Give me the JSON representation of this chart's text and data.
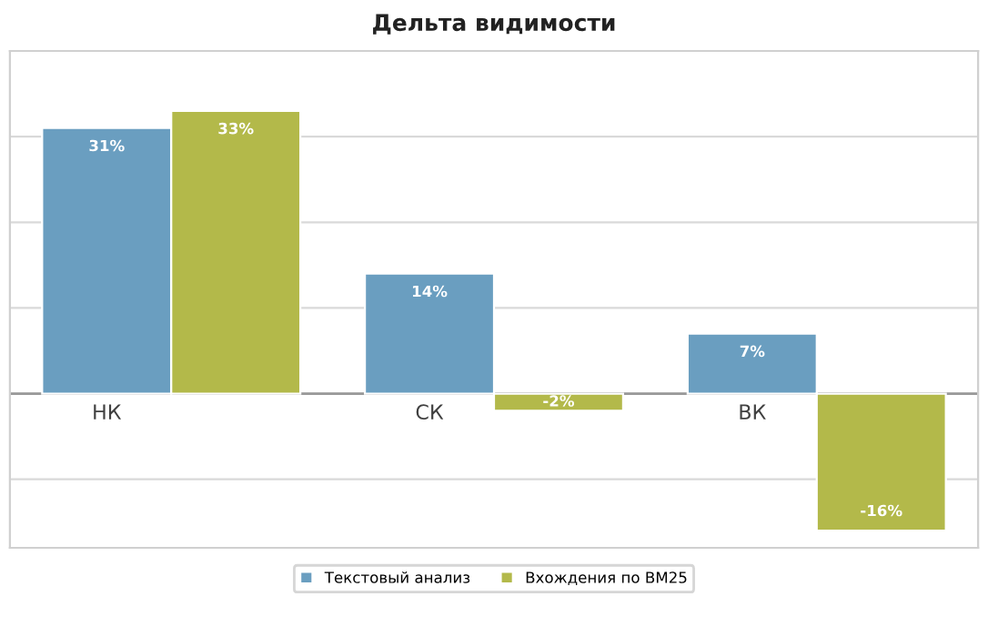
{
  "chart_data": {
    "type": "bar",
    "title": "Дельта видимости",
    "categories": [
      "НК",
      "СК",
      "ВК"
    ],
    "series": [
      {
        "name": "Текстовый анализ",
        "color": "#6a9ec0",
        "values": [
          31,
          14,
          7
        ],
        "value_labels": [
          "31%",
          "14%",
          "7%"
        ]
      },
      {
        "name": "Вхождения по BM25",
        "color": "#b3b94a",
        "values": [
          33,
          -2,
          -16
        ],
        "value_labels": [
          "33%",
          "-2%",
          "-16%"
        ]
      }
    ],
    "ylim": [
      -18,
      40
    ],
    "yticks": [
      {
        "value": -10,
        "label": null
      },
      {
        "value": 0,
        "label": null
      },
      {
        "value": 10,
        "label": null
      },
      {
        "value": 20,
        "label": null
      },
      {
        "value": 30,
        "label": null
      },
      {
        "value": 40,
        "label": null
      }
    ],
    "grid": "y",
    "legend": "bottom"
  }
}
